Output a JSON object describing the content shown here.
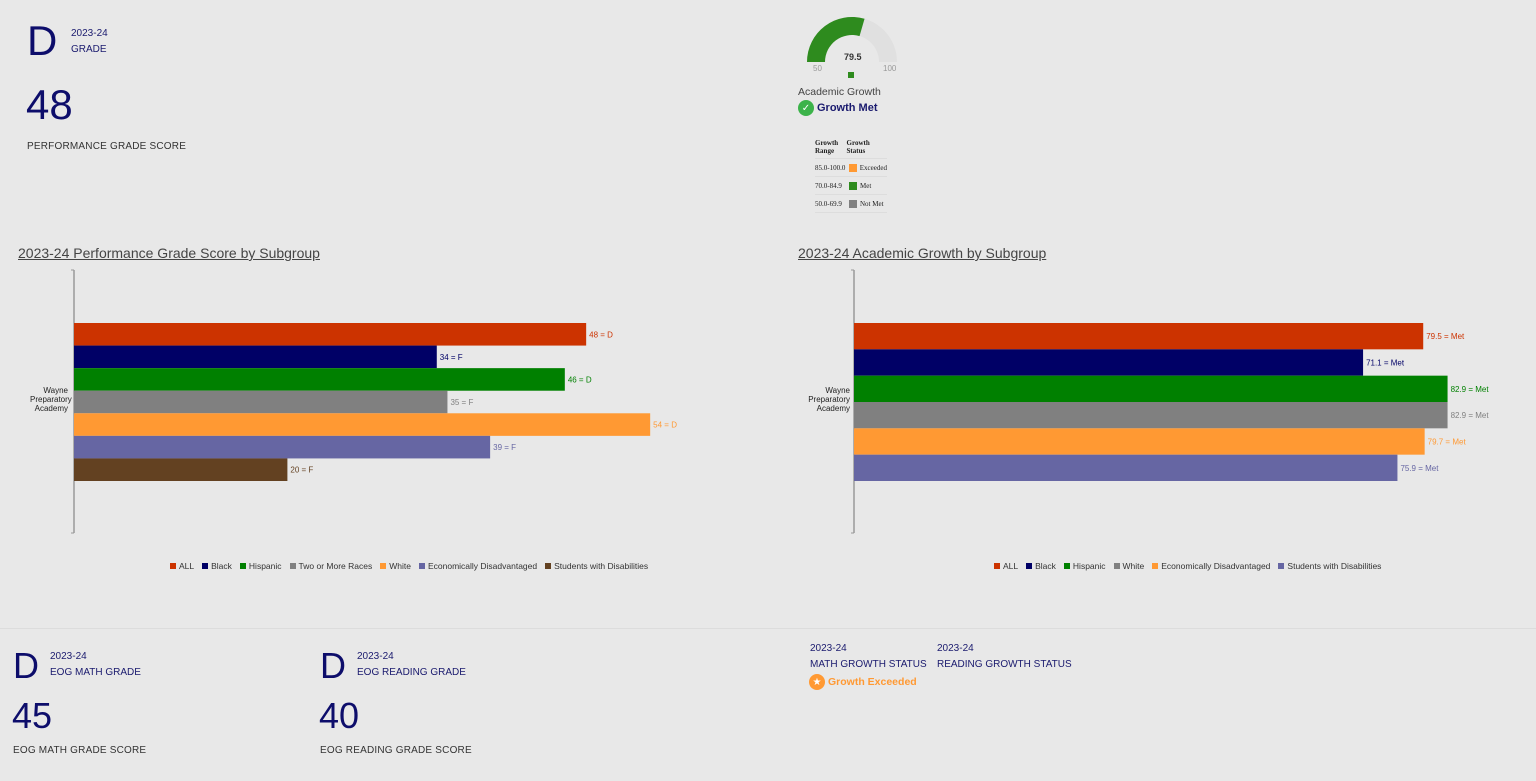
{
  "overall": {
    "grade": "D",
    "year": "2023-24",
    "grade_label": "GRADE",
    "score": "48",
    "score_label": "PERFORMANCE GRADE SCORE"
  },
  "growth_gauge": {
    "value": 79.5,
    "value_text": "79.5",
    "min_label": "50",
    "max_label": "100",
    "min": 50,
    "max": 100,
    "title": "Academic Growth",
    "status": "Growth Met",
    "color": "#2e8b1e"
  },
  "growth_table": {
    "headers": [
      "Growth Range",
      "Growth Status"
    ],
    "rows": [
      {
        "range": "85.0-100.0",
        "status": "Exceeded",
        "color": "#ff9933"
      },
      {
        "range": "70.0-84.9",
        "status": "Met",
        "color": "#2e8b1e"
      },
      {
        "range": "50.0-69.9",
        "status": "Not Met",
        "color": "#808080"
      }
    ]
  },
  "chart_data": [
    {
      "type": "bar",
      "orientation": "horizontal",
      "title": "2023-24 Performance Grade Score by Subgroup",
      "category": "Wayne Preparatory Academy",
      "xlim": [
        0,
        60
      ],
      "series": [
        {
          "name": "ALL",
          "value": 48,
          "label": "48 = D",
          "color": "#cc3300"
        },
        {
          "name": "Black",
          "value": 34,
          "label": "34 = F",
          "color": "#000066"
        },
        {
          "name": "Hispanic",
          "value": 46,
          "label": "46 = D",
          "color": "#008000"
        },
        {
          "name": "Two or More Races",
          "value": 35,
          "label": "35 = F",
          "color": "#808080"
        },
        {
          "name": "White",
          "value": 54,
          "label": "54 = D",
          "color": "#ff9933"
        },
        {
          "name": "Economically Disadvantaged",
          "value": 39,
          "label": "39 = F",
          "color": "#6666a3"
        },
        {
          "name": "Students with Disabilities",
          "value": 20,
          "label": "20 = F",
          "color": "#634121"
        }
      ]
    },
    {
      "type": "bar",
      "orientation": "horizontal",
      "title": "2023-24 Academic Growth by Subgroup",
      "category": "Wayne Preparatory Academy",
      "xlim": [
        0,
        93
      ],
      "series": [
        {
          "name": "ALL",
          "value": 79.5,
          "label": "79.5 = Met",
          "color": "#cc3300"
        },
        {
          "name": "Black",
          "value": 71.1,
          "label": "71.1 = Met",
          "color": "#000066"
        },
        {
          "name": "Hispanic",
          "value": 82.9,
          "label": "82.9 = Met",
          "color": "#008000"
        },
        {
          "name": "White",
          "value": 82.9,
          "label": "82.9 = Met",
          "color": "#808080"
        },
        {
          "name": "Economically Disadvantaged",
          "value": 79.7,
          "label": "79.7 = Met",
          "color": "#ff9933"
        },
        {
          "name": "Students with Disabilities",
          "value": 75.9,
          "label": "75.9 = Met",
          "color": "#6666a3"
        }
      ]
    }
  ],
  "math": {
    "grade": "D",
    "year": "2023-24",
    "grade_label": "EOG MATH GRADE",
    "score": "45",
    "score_label": "EOG MATH GRADE SCORE"
  },
  "reading": {
    "grade": "D",
    "year": "2023-24",
    "grade_label": "EOG READING GRADE",
    "score": "40",
    "score_label": "EOG READING GRADE SCORE"
  },
  "math_growth": {
    "year": "2023-24",
    "label": "MATH GROWTH STATUS",
    "status": "Growth Exceeded"
  },
  "reading_growth": {
    "year": "2023-24",
    "label": "READING GROWTH STATUS"
  }
}
